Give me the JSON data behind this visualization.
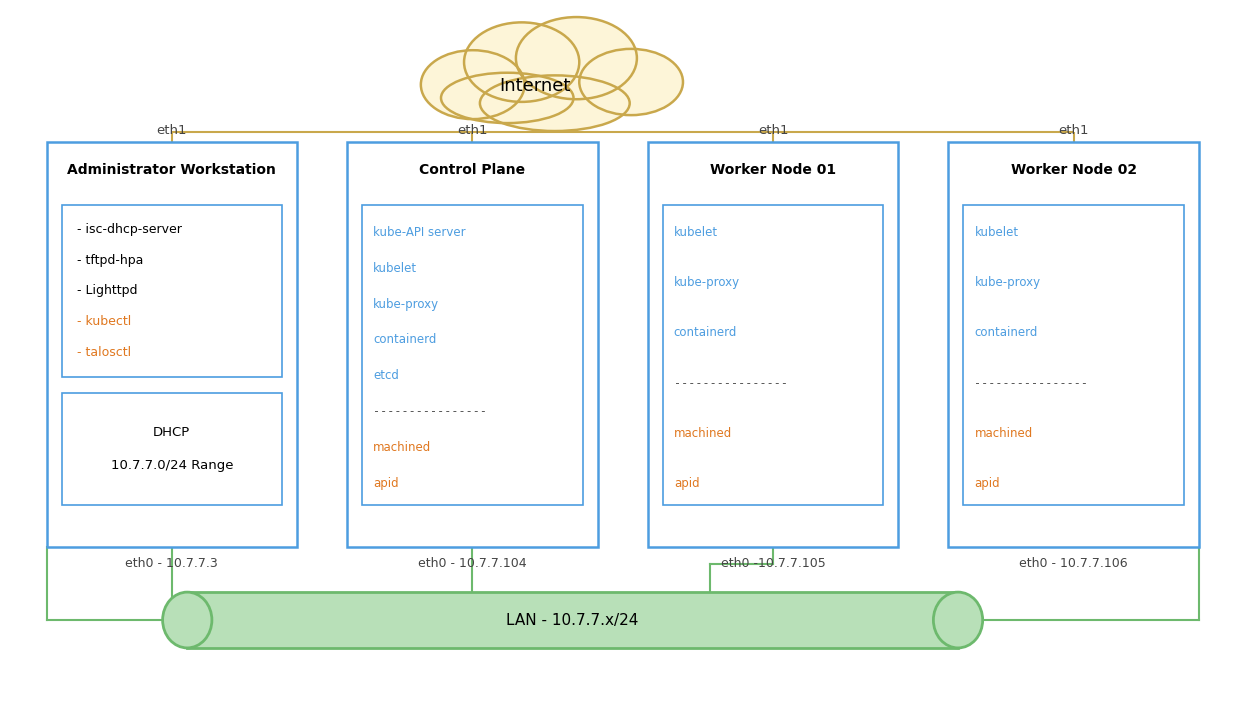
{
  "bg_color": "#ffffff",
  "internet_label": "Internet",
  "cloud_color": "#fdf5d8",
  "cloud_edge_color": "#c9a84c",
  "lan_label": "LAN - 10.7.7.x/24",
  "lan_color": "#b8e0b8",
  "lan_edge_color": "#6db96d",
  "node_edge_color": "#4d9de0",
  "node_bg_color": "#ffffff",
  "inner_box_edge_color": "#4d9de0",
  "green_line_color": "#6db96d",
  "gold_line_color": "#c9a84c",
  "nodes": [
    {
      "id": "admin",
      "title": "Administrator Workstation",
      "eth1": "eth1",
      "eth0": "eth0 - 10.7.7.3",
      "inner_boxes": [
        {
          "lines": [
            {
              "text": "- isc-dhcp-server",
              "color": "#000000"
            },
            {
              "text": "- tftpd-hpa",
              "color": "#000000"
            },
            {
              "text": "- Lighttpd",
              "color": "#000000"
            },
            {
              "text": "- kubectl",
              "color": "#e07820"
            },
            {
              "text": "- talosctl",
              "color": "#e07820"
            }
          ]
        },
        {
          "lines": [
            {
              "text": "DHCP",
              "color": "#000000"
            },
            {
              "text": "10.7.7.0/24 Range",
              "color": "#000000"
            }
          ]
        }
      ]
    },
    {
      "id": "control",
      "title": "Control Plane",
      "eth1": "eth1",
      "eth0": "eth0 - 10.7.7.104",
      "inner_boxes": [
        {
          "lines": [
            {
              "text": "kube-API server",
              "color": "#4d9de0"
            },
            {
              "text": "kubelet",
              "color": "#4d9de0"
            },
            {
              "text": "kube-proxy",
              "color": "#4d9de0"
            },
            {
              "text": "containerd",
              "color": "#4d9de0"
            },
            {
              "text": "etcd",
              "color": "#4d9de0"
            },
            {
              "text": "----------------",
              "color": "#000000"
            },
            {
              "text": "machined",
              "color": "#e07820"
            },
            {
              "text": "apid",
              "color": "#e07820"
            }
          ]
        }
      ]
    },
    {
      "id": "worker01",
      "title": "Worker Node 01",
      "eth1": "eth1",
      "eth0": "eth0 -10.7.7.105",
      "inner_boxes": [
        {
          "lines": [
            {
              "text": "kubelet",
              "color": "#4d9de0"
            },
            {
              "text": "kube-proxy",
              "color": "#4d9de0"
            },
            {
              "text": "containerd",
              "color": "#4d9de0"
            },
            {
              "text": "----------------",
              "color": "#000000"
            },
            {
              "text": "machined",
              "color": "#e07820"
            },
            {
              "text": "apid",
              "color": "#e07820"
            }
          ]
        }
      ]
    },
    {
      "id": "worker02",
      "title": "Worker Node 02",
      "eth1": "eth1",
      "eth0": "eth0 - 10.7.7.106",
      "inner_boxes": [
        {
          "lines": [
            {
              "text": "kubelet",
              "color": "#4d9de0"
            },
            {
              "text": "kube-proxy",
              "color": "#4d9de0"
            },
            {
              "text": "containerd",
              "color": "#4d9de0"
            },
            {
              "text": "----------------",
              "color": "#000000"
            },
            {
              "text": "machined",
              "color": "#e07820"
            },
            {
              "text": "apid",
              "color": "#e07820"
            }
          ]
        }
      ]
    }
  ]
}
